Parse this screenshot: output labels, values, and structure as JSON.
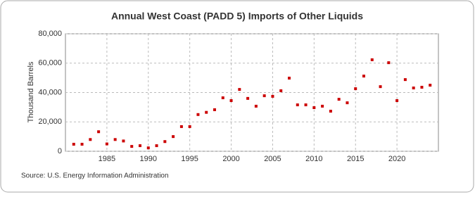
{
  "chart_data": {
    "type": "scatter",
    "title": "Annual West Coast (PADD 5) Imports of Other Liquids",
    "y_axis_label": "Thousand Barrels",
    "source": "Source: U.S. Energy Information Administration",
    "x": [
      1981,
      1982,
      1983,
      1984,
      1985,
      1986,
      1987,
      1988,
      1989,
      1990,
      1991,
      1992,
      1993,
      1994,
      1995,
      1996,
      1997,
      1998,
      1999,
      2000,
      2001,
      2002,
      2003,
      2004,
      2005,
      2006,
      2007,
      2008,
      2009,
      2010,
      2011,
      2012,
      2013,
      2014,
      2015,
      2016,
      2017,
      2018,
      2019,
      2020,
      2021,
      2022,
      2023,
      2024
    ],
    "values": [
      4800,
      4800,
      8000,
      13300,
      5000,
      8000,
      7000,
      3300,
      3800,
      2300,
      3800,
      6600,
      10000,
      16800,
      16800,
      25000,
      26500,
      28300,
      36400,
      34500,
      42100,
      36000,
      30700,
      37800,
      37400,
      41200,
      49800,
      31600,
      31600,
      29700,
      30700,
      27300,
      35400,
      33000,
      42600,
      51200,
      62300,
      44000,
      60300,
      34500,
      48800,
      43100,
      43600,
      45000
    ],
    "color": "#cc0000",
    "xlim": [
      1980,
      2025
    ],
    "xticks": [
      1985,
      1990,
      1995,
      2000,
      2005,
      2010,
      2015,
      2020
    ],
    "ylim": [
      0,
      80000
    ],
    "yticks": [
      0,
      {
        "value": 20000,
        "label": "20,000"
      },
      {
        "value": 40000,
        "label": "40,000"
      },
      {
        "value": 60000,
        "label": "60,000"
      },
      {
        "value": 80000,
        "label": "80,000"
      }
    ],
    "grid": true
  }
}
